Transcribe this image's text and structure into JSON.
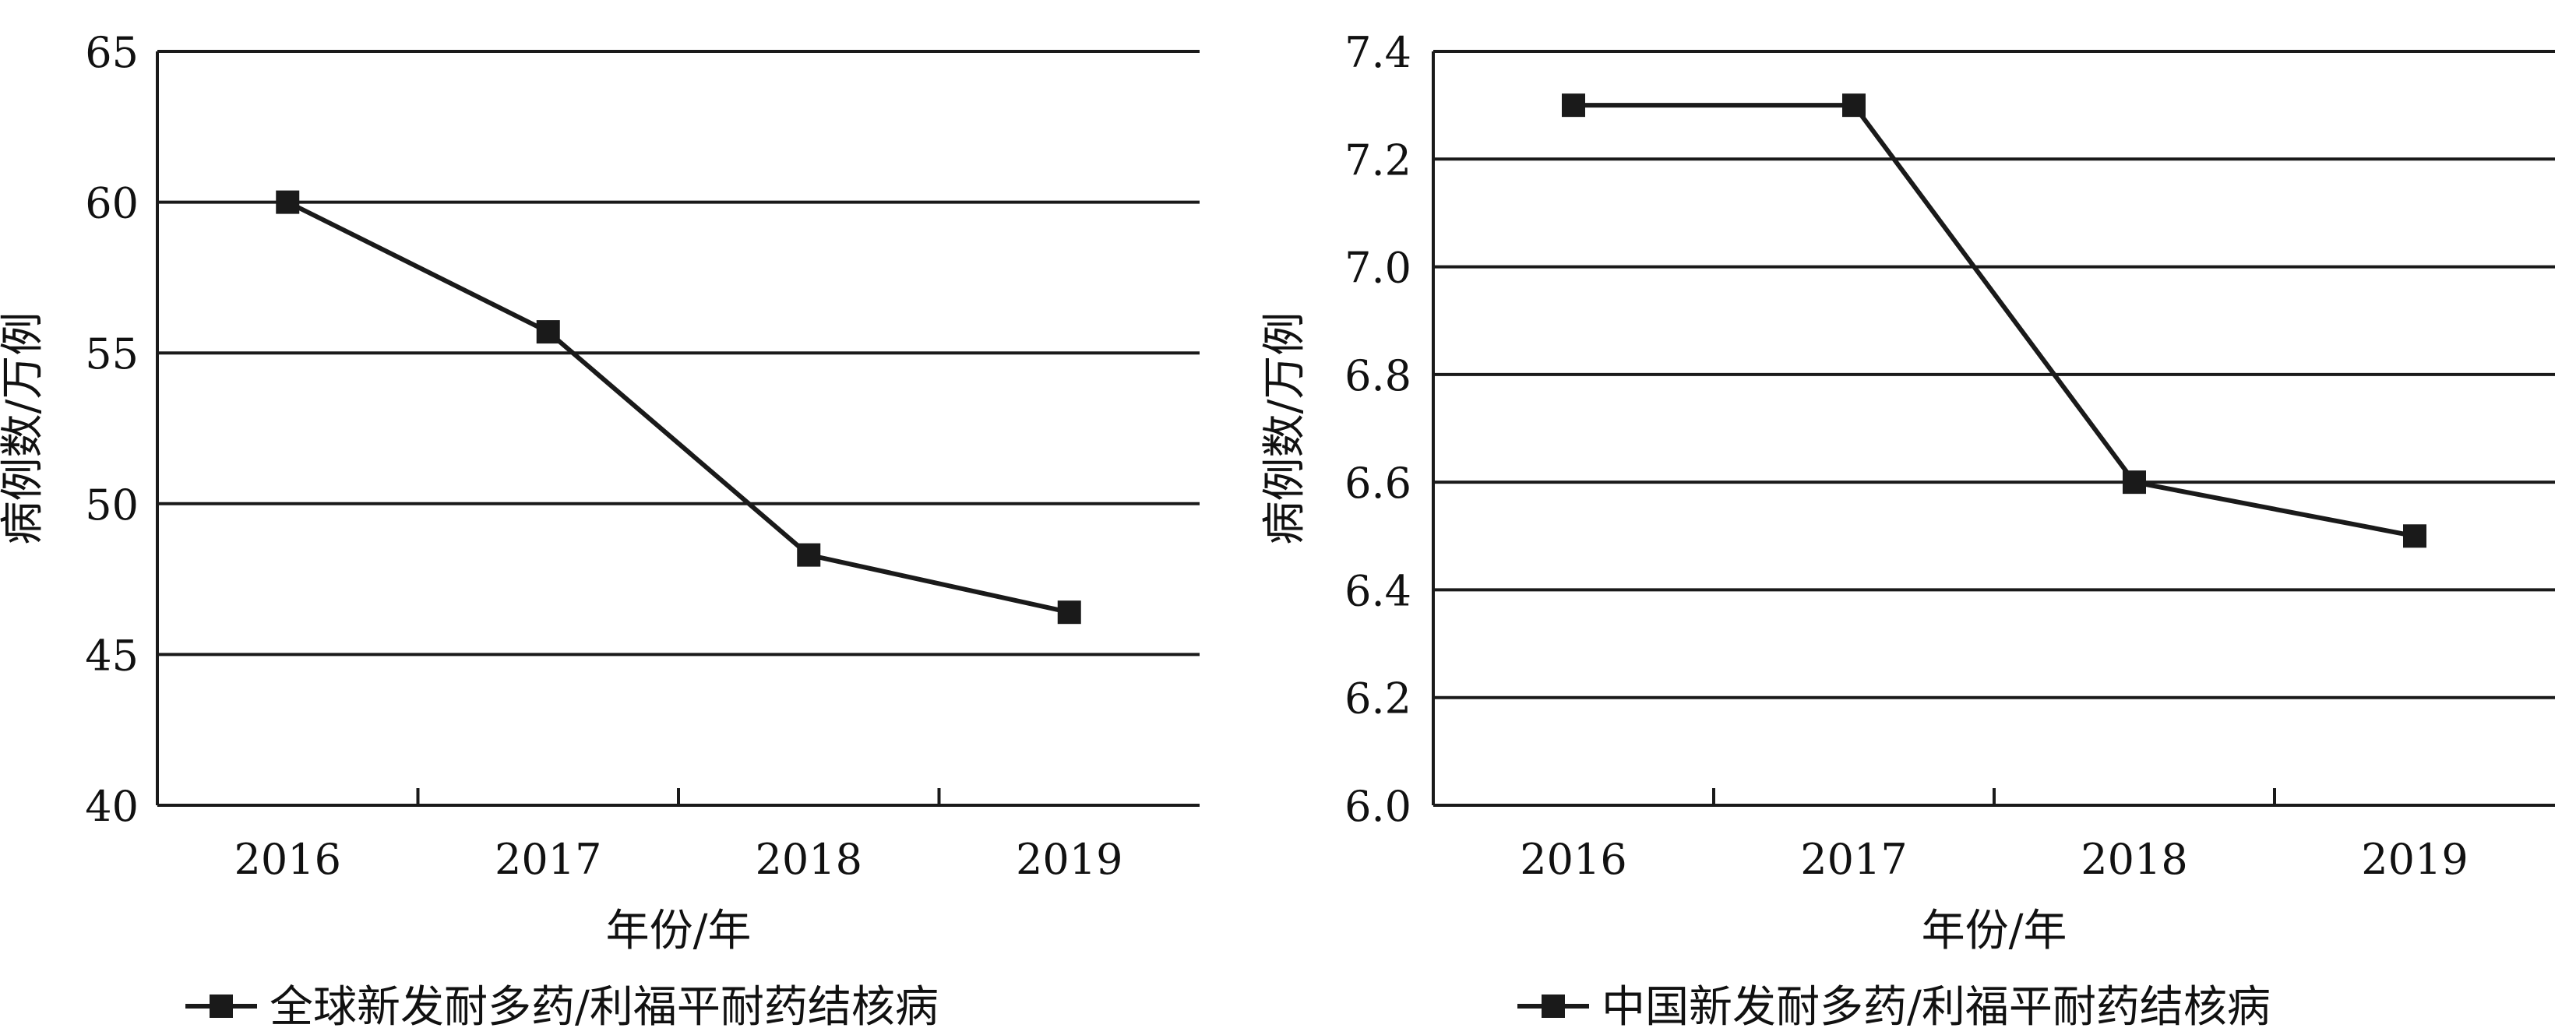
{
  "chart_data": [
    {
      "type": "line",
      "categories": [
        "2016",
        "2017",
        "2018",
        "2019"
      ],
      "series": [
        {
          "name": "全球新发耐多药/利福平耐药结核病",
          "values": [
            60,
            55.7,
            48.3,
            46.4
          ]
        }
      ],
      "xlabel": "年份/年",
      "ylabel": "病例数/万例",
      "ylim": [
        40,
        65
      ],
      "yticks": [
        40,
        45,
        50,
        55,
        60,
        65
      ],
      "ytick_labels": [
        "40",
        "45",
        "50",
        "55",
        "60",
        "65"
      ],
      "grid": true,
      "legend": "bottom",
      "color": "#1a1a1a"
    },
    {
      "type": "line",
      "categories": [
        "2016",
        "2017",
        "2018",
        "2019"
      ],
      "series": [
        {
          "name": "中国新发耐多药/利福平耐药结核病",
          "values": [
            7.3,
            7.3,
            6.6,
            6.5
          ]
        }
      ],
      "xlabel": "年份/年",
      "ylabel": "病例数/万例",
      "ylim": [
        6.0,
        7.4
      ],
      "yticks": [
        6.0,
        6.2,
        6.4,
        6.6,
        6.8,
        7.0,
        7.2,
        7.4
      ],
      "ytick_labels": [
        "6.0",
        "6.2",
        "6.4",
        "6.6",
        "6.8",
        "7.0",
        "7.2",
        "7.4"
      ],
      "grid": true,
      "legend": "bottom",
      "color": "#1a1a1a"
    }
  ]
}
